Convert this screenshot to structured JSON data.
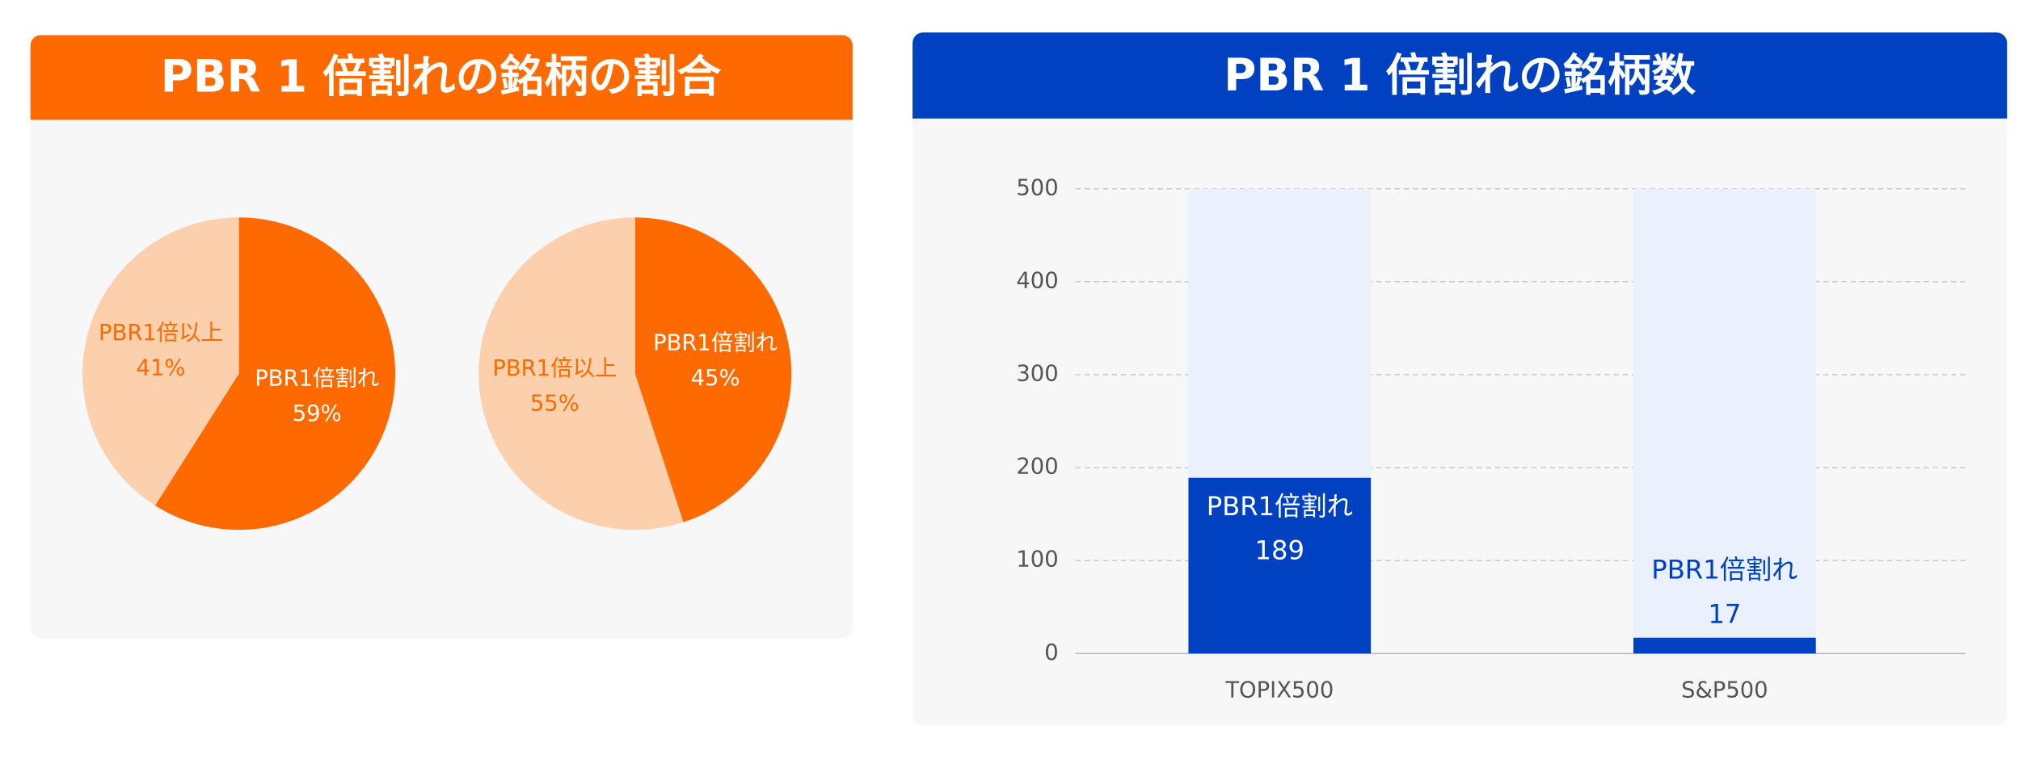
{
  "chart_data": [
    {
      "type": "pie",
      "title": "PBR 1 倍割れの銘柄の割合",
      "pies": [
        {
          "categories": [
            "PBR1倍割れ",
            "PBR1倍以上"
          ],
          "values": [
            59,
            41
          ],
          "value_labels": [
            "59%",
            "41%"
          ],
          "colors": [
            "#ff6a00",
            "#fdd0ad"
          ]
        },
        {
          "categories": [
            "PBR1倍割れ",
            "PBR1倍以上"
          ],
          "values": [
            45,
            55
          ],
          "value_labels": [
            "45%",
            "55%"
          ],
          "colors": [
            "#ff6a00",
            "#fdd0ad"
          ]
        }
      ]
    },
    {
      "type": "bar",
      "title": "PBR 1 倍割れの銘柄数",
      "categories": [
        "TOPIX500",
        "S&P500"
      ],
      "series": [
        {
          "name": "PBR1倍割れ",
          "color": "#0041c2",
          "values": [
            189,
            17
          ]
        }
      ],
      "ylim": [
        0,
        500
      ],
      "yticks": [
        0,
        100,
        200,
        300,
        400,
        500
      ],
      "grid": true
    }
  ]
}
